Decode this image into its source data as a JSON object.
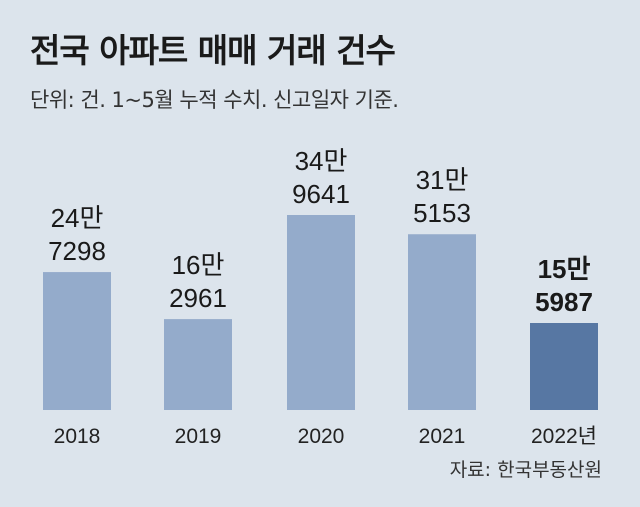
{
  "chart_data": {
    "type": "bar",
    "title": "전국 아파트 매매 거래 건수",
    "subtitle": "단위: 건. 1~5월 누적 수치. 신고일자 기준.",
    "categories": [
      "2018",
      "2019",
      "2020",
      "2021",
      "2022년"
    ],
    "values": [
      247298,
      162961,
      349641,
      315153,
      155987
    ],
    "data_labels": [
      [
        "24만",
        "7298"
      ],
      [
        "16만",
        "2961"
      ],
      [
        "34만",
        "9641"
      ],
      [
        "31만",
        "5153"
      ],
      [
        "15만",
        "5987"
      ]
    ],
    "highlight_index": 4,
    "ylim": [
      0,
      360000
    ],
    "grid": false,
    "xlabel": "",
    "ylabel": "",
    "source": "자료: 한국부동산원",
    "colors": {
      "bar": "#94abcb",
      "highlight": "#5777a3",
      "background": "#dce4ec"
    }
  }
}
